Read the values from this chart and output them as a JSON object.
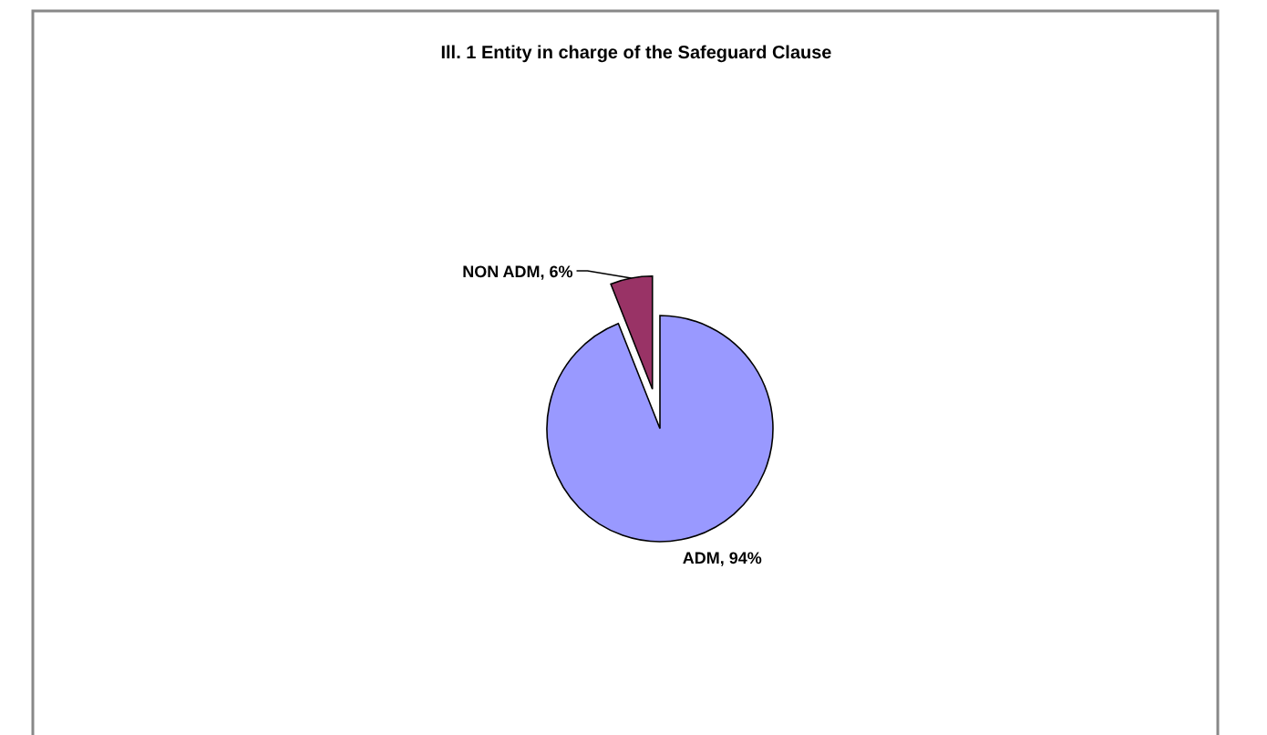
{
  "chart_data": {
    "type": "pie",
    "title": "Ill. 1 Entity in charge of the Safeguard Clause",
    "categories": [
      "ADM",
      "NON ADM"
    ],
    "values": [
      94,
      6
    ],
    "colors": [
      "#9999ff",
      "#993366"
    ],
    "value_labels": [
      "94%",
      "6%"
    ]
  }
}
